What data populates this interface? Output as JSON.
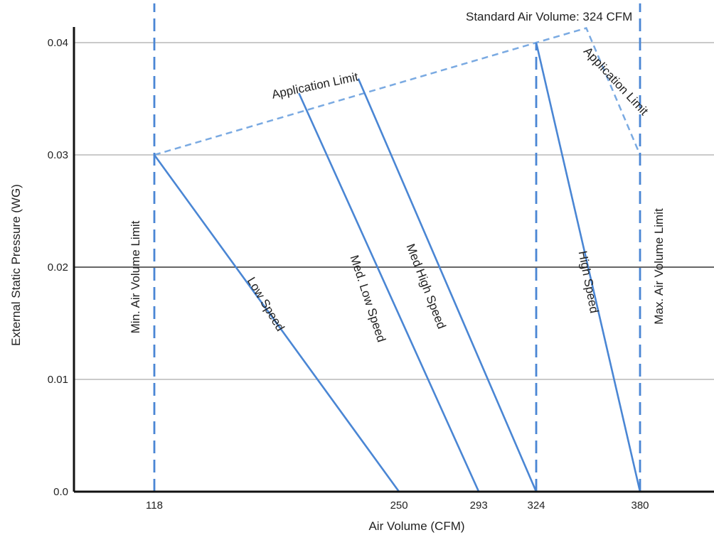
{
  "chart_data": {
    "type": "line",
    "title": "",
    "xlabel": "Air Volume  (CFM)",
    "ylabel": "External Static Pressure (WG)",
    "xlim": [
      80,
      385
    ],
    "ylim": [
      0,
      0.042
    ],
    "x_tick_labels": [
      "118",
      "250",
      "293",
      "324",
      "380"
    ],
    "x_ticks": [
      118,
      250,
      293,
      324,
      380
    ],
    "y_tick_labels": [
      "0.0",
      "0.01",
      "0.02",
      "0.03",
      "0.04"
    ],
    "y_ticks": [
      0,
      0.01,
      0.02,
      0.03,
      0.04
    ],
    "grid": "horizontal",
    "line_color": "#4a86d4",
    "gridline_color": "#aaaaaa",
    "series": [
      {
        "name": "Low Speed",
        "style": "solid",
        "x": [
          118,
          250
        ],
        "y": [
          0.03,
          0.0
        ]
      },
      {
        "name": "Med. Low  Speed",
        "style": "solid",
        "x": [
          196,
          293
        ],
        "y": [
          0.0355,
          0.0
        ]
      },
      {
        "name": "Med High Speed",
        "style": "solid",
        "x": [
          228,
          324
        ],
        "y": [
          0.0368,
          0.0
        ]
      },
      {
        "name": "High Speed",
        "style": "solid",
        "x": [
          324,
          380
        ],
        "y": [
          0.04,
          0.0
        ]
      }
    ],
    "limits": [
      {
        "name": "Application Limit",
        "style": "dashed",
        "x": [
          118,
          324,
          351,
          380
        ],
        "y": [
          0.03,
          0.04,
          0.0413,
          0.03
        ]
      },
      {
        "name": "Min. Air Volume  Limit",
        "style": "dashed",
        "x": [
          118,
          118
        ],
        "y": [
          0,
          0.0435
        ]
      },
      {
        "name": "Standard Air Volume",
        "style": "dashed",
        "x": [
          324,
          324
        ],
        "y": [
          0,
          0.04
        ]
      },
      {
        "name": "Max. Air Volume   Limit",
        "style": "dashed",
        "x": [
          380,
          380
        ],
        "y": [
          0,
          0.0435
        ]
      }
    ],
    "annotations": {
      "standard_air_volume": "Standard Air Volume:  324 CFM",
      "application_limit_top": "Application  Limit",
      "application_limit_right": "Application  Limit",
      "min_limit": "Min. Air Volume  Limit",
      "max_limit": "Max. Air Volume   Limit",
      "low_speed": "Low Speed",
      "med_low_speed": "Med. Low  Speed",
      "med_high_speed": "Med High Speed",
      "high_speed": "High Speed"
    }
  }
}
